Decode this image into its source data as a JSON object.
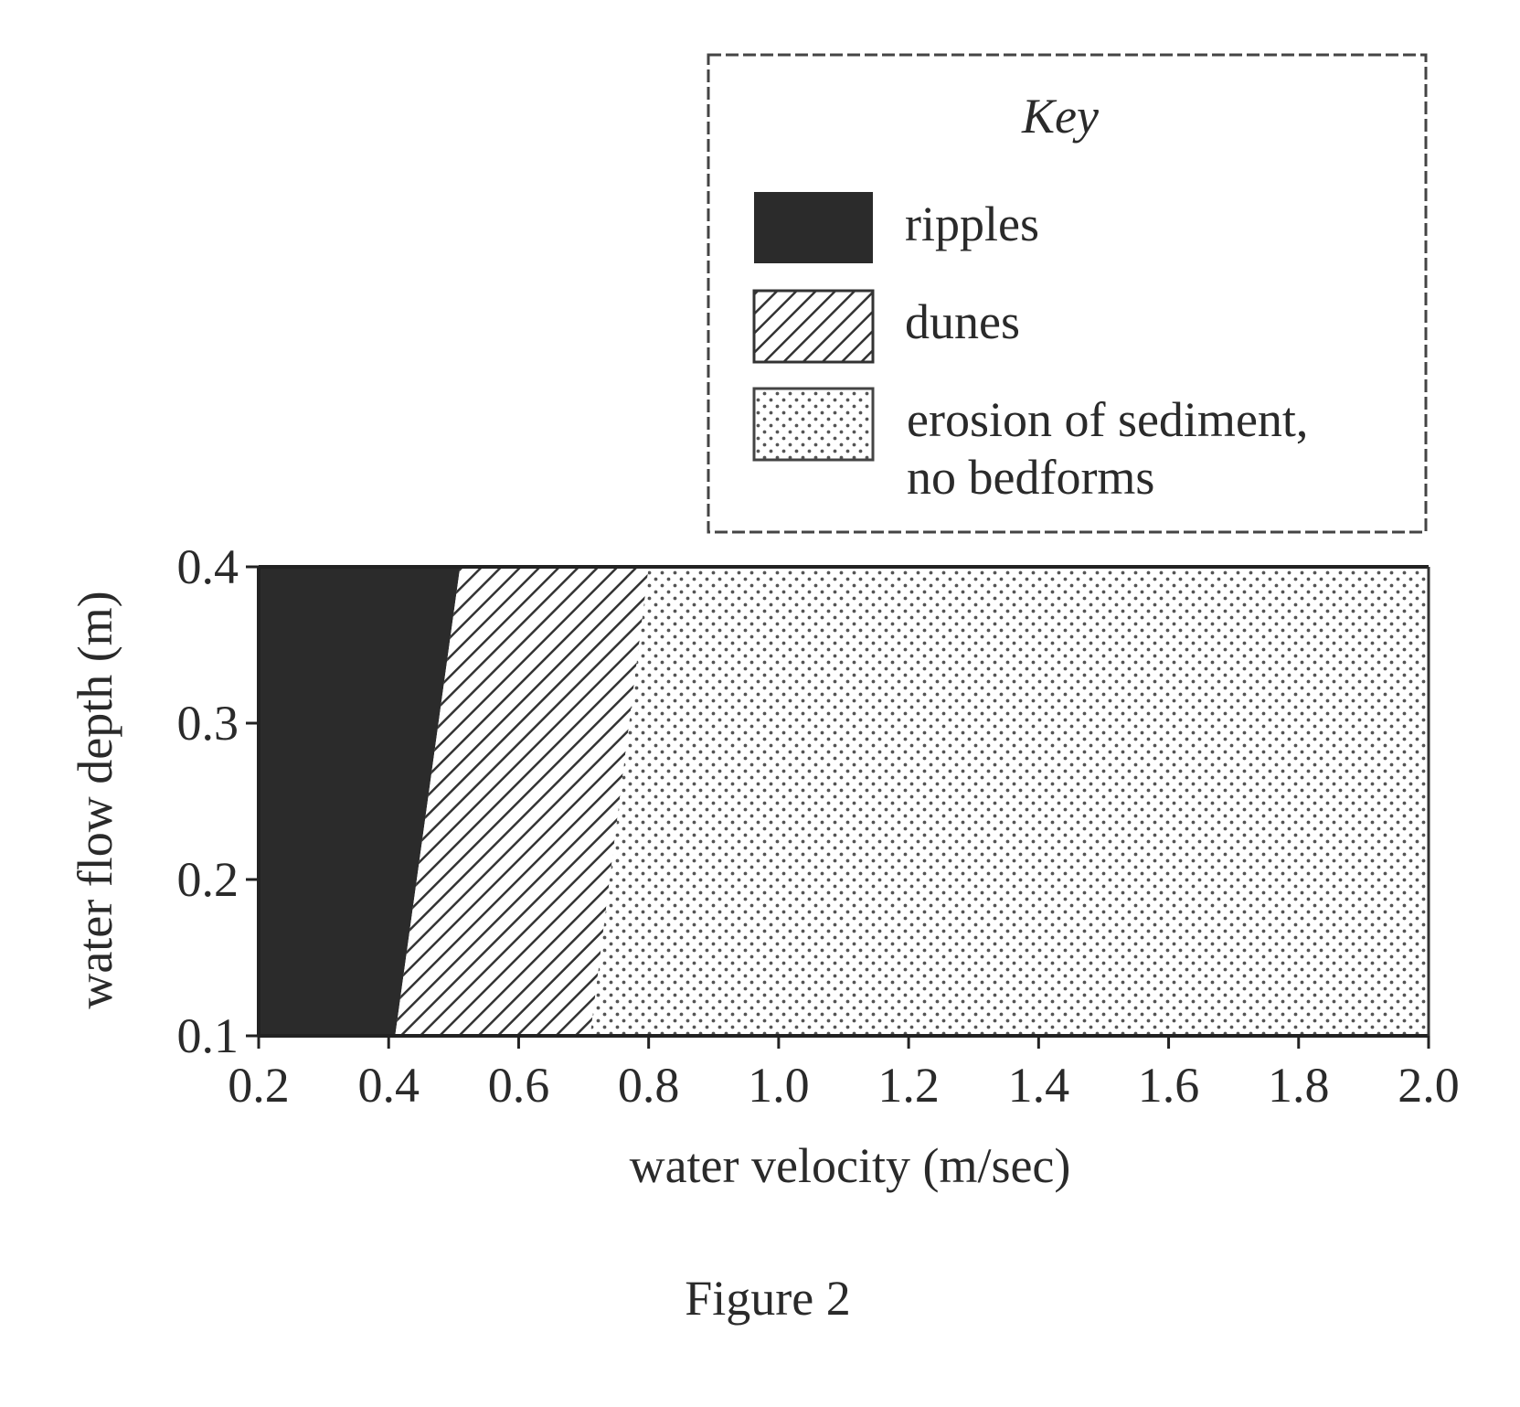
{
  "chart_data": {
    "type": "area",
    "xlabel": "water velocity (m/sec)",
    "ylabel": "water flow depth (m)",
    "xlim": [
      0.2,
      2.0
    ],
    "ylim": [
      0.1,
      0.4
    ],
    "xticks": [
      "0.2",
      "0.4",
      "0.6",
      "0.8",
      "1.0",
      "1.2",
      "1.4",
      "1.6",
      "1.8",
      "2.0"
    ],
    "yticks": [
      "0.1",
      "0.2",
      "0.3",
      "0.4"
    ],
    "regions": [
      {
        "name": "ripples",
        "fill": "solid",
        "color": "#2b2b2b",
        "boundary_left": [
          [
            0.2,
            0.1
          ],
          [
            0.2,
            0.4
          ]
        ],
        "boundary_right": [
          [
            0.41,
            0.1
          ],
          [
            0.51,
            0.4
          ]
        ]
      },
      {
        "name": "dunes",
        "fill": "diagonal-hatch",
        "color": "#333333",
        "boundary_left": [
          [
            0.41,
            0.1
          ],
          [
            0.51,
            0.4
          ]
        ],
        "boundary_right": [
          [
            0.71,
            0.1
          ],
          [
            0.8,
            0.4
          ]
        ]
      },
      {
        "name": "erosion of sediment, no bedforms",
        "fill": "dotted",
        "color": "#555555",
        "boundary_left": [
          [
            0.71,
            0.1
          ],
          [
            0.8,
            0.4
          ]
        ],
        "boundary_right": [
          [
            2.0,
            0.1
          ],
          [
            2.0,
            0.4
          ]
        ]
      }
    ],
    "legend": {
      "title": "Key",
      "placement": "top-right",
      "entries": [
        {
          "lines": [
            "ripples"
          ],
          "fill": "solid"
        },
        {
          "lines": [
            "dunes"
          ],
          "fill": "diagonal-hatch"
        },
        {
          "lines": [
            "erosion of sediment,",
            "no bedforms"
          ],
          "fill": "dotted"
        }
      ]
    },
    "caption": "Figure 2",
    "grid": false
  }
}
